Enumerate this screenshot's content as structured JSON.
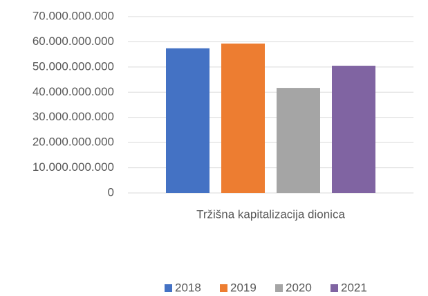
{
  "chart_data": {
    "type": "bar",
    "categories": [
      "Tržišna kapitalizacija dionica"
    ],
    "series": [
      {
        "name": "2018",
        "color": "#4472c4",
        "values": [
          57400000000
        ]
      },
      {
        "name": "2019",
        "color": "#ed7d31",
        "values": [
          59300000000
        ]
      },
      {
        "name": "2020",
        "color": "#a5a5a5",
        "values": [
          41700000000
        ]
      },
      {
        "name": "2021",
        "color": "#8064a2",
        "values": [
          50500000000
        ]
      }
    ],
    "ylim": [
      0,
      70000000000
    ],
    "yticks": [
      0,
      {
        "value": 10000000000,
        "label": "10.000.000.000"
      },
      {
        "value": 20000000000,
        "label": "20.000.000.000"
      },
      {
        "value": 30000000000,
        "label": "30.000.000.000"
      },
      {
        "value": 40000000000,
        "label": "40.000.000.000"
      },
      {
        "value": 50000000000,
        "label": "50.000.000.000"
      },
      {
        "value": 60000000000,
        "label": "60.000.000.000"
      },
      {
        "value": 70000000000,
        "label": "70.000.000.000"
      }
    ],
    "grid": true,
    "legend": "bottom"
  }
}
